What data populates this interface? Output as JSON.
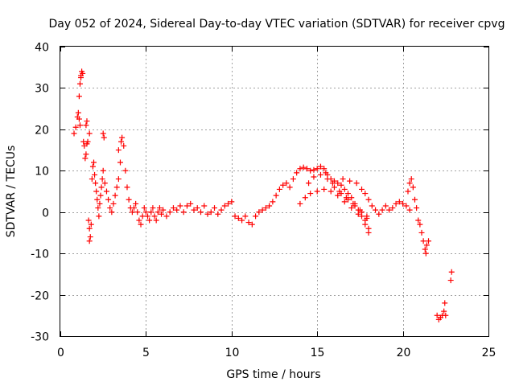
{
  "chart_data": {
    "type": "scatter",
    "title": "Day 052 of 2024, Sidereal Day-to-day VTEC variation (SDTVAR) for receiver cpvg",
    "xlabel": "GPS time / hours",
    "ylabel": "SDTVAR / TECUs",
    "xlim": [
      0,
      25
    ],
    "ylim": [
      -30,
      40
    ],
    "xticks": [
      0,
      5,
      10,
      15,
      20,
      25
    ],
    "yticks": [
      -30,
      -20,
      -10,
      0,
      10,
      20,
      30,
      40
    ],
    "grid": true,
    "marker": "+",
    "colors": {
      "series": "#ff0000",
      "grid": "#a0a0a0",
      "axis": "#000000"
    },
    "series": [
      {
        "name": "SDTVAR",
        "points": [
          [
            0.8,
            19
          ],
          [
            0.9,
            20.5
          ],
          [
            1.0,
            23
          ],
          [
            1.05,
            24
          ],
          [
            1.1,
            22.5
          ],
          [
            1.15,
            21
          ],
          [
            1.1,
            28
          ],
          [
            1.15,
            31
          ],
          [
            1.2,
            33
          ],
          [
            1.25,
            34
          ],
          [
            1.2,
            32.5
          ],
          [
            1.3,
            33.5
          ],
          [
            1.35,
            17
          ],
          [
            1.4,
            16
          ],
          [
            1.45,
            13
          ],
          [
            1.5,
            14
          ],
          [
            1.55,
            16.5
          ],
          [
            1.5,
            21
          ],
          [
            1.55,
            22
          ],
          [
            1.6,
            17
          ],
          [
            1.7,
            19
          ],
          [
            1.65,
            -2
          ],
          [
            1.7,
            -4
          ],
          [
            1.75,
            -6
          ],
          [
            1.7,
            -7
          ],
          [
            1.8,
            -3
          ],
          [
            1.85,
            8
          ],
          [
            1.9,
            11
          ],
          [
            1.95,
            12
          ],
          [
            2.0,
            9
          ],
          [
            2.05,
            7
          ],
          [
            2.1,
            5
          ],
          [
            2.15,
            3
          ],
          [
            2.2,
            1
          ],
          [
            2.25,
            -1
          ],
          [
            2.3,
            2
          ],
          [
            2.35,
            4
          ],
          [
            2.4,
            6
          ],
          [
            2.45,
            8
          ],
          [
            2.5,
            10
          ],
          [
            2.5,
            19
          ],
          [
            2.55,
            18
          ],
          [
            2.6,
            7
          ],
          [
            2.7,
            5
          ],
          [
            2.8,
            3
          ],
          [
            2.9,
            1
          ],
          [
            3.0,
            0
          ],
          [
            3.1,
            2
          ],
          [
            3.2,
            4
          ],
          [
            3.3,
            6
          ],
          [
            3.4,
            8
          ],
          [
            3.5,
            12
          ],
          [
            3.4,
            15
          ],
          [
            3.55,
            17
          ],
          [
            3.6,
            18
          ],
          [
            3.7,
            16
          ],
          [
            3.8,
            10
          ],
          [
            3.9,
            6
          ],
          [
            4.0,
            3
          ],
          [
            4.1,
            1
          ],
          [
            4.2,
            0
          ],
          [
            4.3,
            1
          ],
          [
            4.4,
            2
          ],
          [
            4.5,
            0
          ],
          [
            4.6,
            -2
          ],
          [
            4.7,
            -3
          ],
          [
            4.8,
            -1
          ],
          [
            4.9,
            1
          ],
          [
            5.0,
            0
          ],
          [
            5.1,
            -1
          ],
          [
            5.2,
            -2
          ],
          [
            5.3,
            0
          ],
          [
            5.4,
            1
          ],
          [
            5.5,
            -1
          ],
          [
            5.6,
            -2
          ],
          [
            5.7,
            0
          ],
          [
            5.8,
            1
          ],
          [
            5.9,
            -0.5
          ],
          [
            6.0,
            0.5
          ],
          [
            6.2,
            -1
          ],
          [
            6.4,
            0
          ],
          [
            6.6,
            1
          ],
          [
            6.8,
            0.5
          ],
          [
            7.0,
            1.5
          ],
          [
            7.2,
            0
          ],
          [
            7.4,
            1.5
          ],
          [
            7.6,
            2
          ],
          [
            7.8,
            0.5
          ],
          [
            8.0,
            1
          ],
          [
            8.2,
            0
          ],
          [
            8.4,
            1.5
          ],
          [
            8.6,
            -0.5
          ],
          [
            8.8,
            0
          ],
          [
            9.0,
            1
          ],
          [
            9.2,
            -0.5
          ],
          [
            9.4,
            0.5
          ],
          [
            9.6,
            1.5
          ],
          [
            9.8,
            2
          ],
          [
            10.0,
            2.5
          ],
          [
            10.2,
            -1
          ],
          [
            10.4,
            -1.5
          ],
          [
            10.6,
            -2
          ],
          [
            10.8,
            -1
          ],
          [
            11.0,
            -2.5
          ],
          [
            11.2,
            -3
          ],
          [
            11.4,
            -1
          ],
          [
            11.6,
            0
          ],
          [
            11.8,
            0.5
          ],
          [
            12.0,
            1
          ],
          [
            12.2,
            1.5
          ],
          [
            12.4,
            2.5
          ],
          [
            12.6,
            4
          ],
          [
            12.8,
            5.5
          ],
          [
            13.0,
            6.5
          ],
          [
            13.2,
            7
          ],
          [
            13.4,
            6
          ],
          [
            13.6,
            8
          ],
          [
            13.8,
            9.5
          ],
          [
            14.0,
            10.5
          ],
          [
            14.2,
            10.8
          ],
          [
            14.4,
            10.5
          ],
          [
            14.6,
            10
          ],
          [
            14.8,
            10.2
          ],
          [
            15.0,
            10.5
          ],
          [
            15.2,
            11
          ],
          [
            15.4,
            10.5
          ],
          [
            15.6,
            9
          ],
          [
            15.8,
            8
          ],
          [
            16.0,
            7.5
          ],
          [
            16.2,
            7
          ],
          [
            16.4,
            6.5
          ],
          [
            16.6,
            5.5
          ],
          [
            16.8,
            4.5
          ],
          [
            17.0,
            3.5
          ],
          [
            17.2,
            2
          ],
          [
            17.4,
            0.5
          ],
          [
            17.6,
            -1
          ],
          [
            17.8,
            -3
          ],
          [
            18.0,
            -5
          ],
          [
            14.0,
            2
          ],
          [
            14.3,
            3.5
          ],
          [
            14.6,
            4.5
          ],
          [
            15.0,
            5
          ],
          [
            15.4,
            5.5
          ],
          [
            15.8,
            5
          ],
          [
            16.2,
            4
          ],
          [
            16.6,
            2.5
          ],
          [
            17.0,
            1
          ],
          [
            17.4,
            -0.5
          ],
          [
            17.8,
            -2
          ],
          [
            18.0,
            -4
          ],
          [
            14.5,
            7
          ],
          [
            14.8,
            8.5
          ],
          [
            15.2,
            9
          ],
          [
            15.6,
            8
          ],
          [
            16.0,
            6
          ],
          [
            16.4,
            4.5
          ],
          [
            16.8,
            3
          ],
          [
            17.2,
            1.5
          ],
          [
            17.6,
            0
          ],
          [
            17.9,
            -1.5
          ],
          [
            15.5,
            9.5
          ],
          [
            15.9,
            7
          ],
          [
            16.3,
            5
          ],
          [
            16.7,
            3.5
          ],
          [
            17.1,
            2
          ],
          [
            17.5,
            0.5
          ],
          [
            17.9,
            -1
          ],
          [
            16.5,
            8
          ],
          [
            16.9,
            7.5
          ],
          [
            17.3,
            7
          ],
          [
            17.6,
            5.5
          ],
          [
            17.8,
            4.5
          ],
          [
            18.0,
            3
          ],
          [
            18.2,
            1.5
          ],
          [
            18.4,
            0.5
          ],
          [
            18.6,
            -0.5
          ],
          [
            18.8,
            0.5
          ],
          [
            19.0,
            1.5
          ],
          [
            19.2,
            0.5
          ],
          [
            19.4,
            1
          ],
          [
            19.6,
            2
          ],
          [
            19.8,
            2.5
          ],
          [
            20.0,
            2
          ],
          [
            20.2,
            1.5
          ],
          [
            20.4,
            0.5
          ],
          [
            20.3,
            5
          ],
          [
            20.4,
            7
          ],
          [
            20.5,
            8
          ],
          [
            20.6,
            6
          ],
          [
            20.7,
            3
          ],
          [
            20.8,
            1
          ],
          [
            20.9,
            -2
          ],
          [
            21.0,
            -3
          ],
          [
            21.1,
            -5
          ],
          [
            21.2,
            -7
          ],
          [
            21.3,
            -9
          ],
          [
            21.35,
            -10
          ],
          [
            21.4,
            -8
          ],
          [
            21.5,
            -7
          ],
          [
            22.0,
            -25
          ],
          [
            22.1,
            -26
          ],
          [
            22.2,
            -25.5
          ],
          [
            22.3,
            -25
          ],
          [
            22.4,
            -24
          ],
          [
            22.45,
            -22
          ],
          [
            22.5,
            -25
          ],
          [
            22.8,
            -16.5
          ],
          [
            22.85,
            -14.5
          ]
        ]
      }
    ]
  }
}
